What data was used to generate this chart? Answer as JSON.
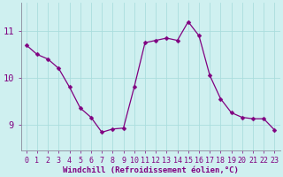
{
  "x": [
    0,
    1,
    2,
    3,
    4,
    5,
    6,
    7,
    8,
    9,
    10,
    11,
    12,
    13,
    14,
    15,
    16,
    17,
    18,
    19,
    20,
    21,
    22,
    23
  ],
  "y": [
    10.7,
    10.5,
    10.4,
    10.2,
    9.8,
    9.35,
    9.15,
    8.83,
    8.9,
    8.92,
    9.8,
    10.75,
    10.8,
    10.85,
    10.8,
    11.2,
    10.9,
    10.05,
    9.55,
    9.25,
    9.15,
    9.12,
    9.12,
    8.88
  ],
  "line_color": "#800080",
  "marker": "D",
  "marker_size": 2.5,
  "bg_color": "#cff0f0",
  "grid_color": "#aadddd",
  "xlabel": "Windchill (Refroidissement éolien,°C)",
  "xtick_labels": [
    "0",
    "1",
    "2",
    "3",
    "4",
    "5",
    "6",
    "7",
    "8",
    "9",
    "10",
    "11",
    "12",
    "13",
    "14",
    "15",
    "16",
    "17",
    "18",
    "19",
    "20",
    "21",
    "22",
    "23"
  ],
  "ytick_labels": [
    "9",
    "10",
    "11"
  ],
  "yticks": [
    9,
    10,
    11
  ],
  "ylim": [
    8.45,
    11.6
  ],
  "xlim": [
    -0.5,
    23.5
  ],
  "axis_label_color": "#800080",
  "tick_color": "#800080",
  "tick_fontsize": 6.0,
  "xlabel_fontsize": 6.5
}
